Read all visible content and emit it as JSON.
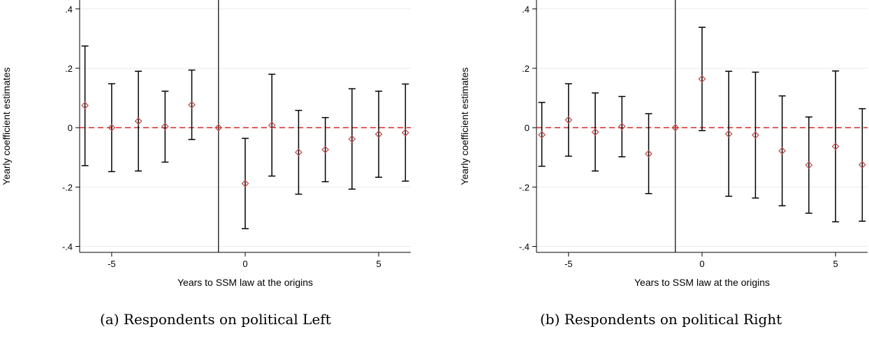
{
  "chart_data": [
    {
      "type": "scatter",
      "panel": "a",
      "caption": "(a) Respondents on political Left",
      "xlabel": "Years to SSM law at the origins",
      "ylabel": "Yearly coefficient estimates",
      "x_ticks": [
        -5,
        0,
        5
      ],
      "y_ticks": [
        ".4",
        ".2",
        "0",
        "-.2",
        "-.4"
      ],
      "y_tick_values": [
        0.4,
        0.2,
        0,
        -0.2,
        -0.4
      ],
      "xlim": [
        -6.2,
        6.2
      ],
      "ylim": [
        -0.42,
        0.43
      ],
      "reference_vertical_x": -1,
      "reference_horizontal_y": 0,
      "points": [
        {
          "x": -6,
          "y": 0.075,
          "lo": -0.128,
          "hi": 0.275
        },
        {
          "x": -5,
          "y": 0.0,
          "lo": -0.148,
          "hi": 0.148
        },
        {
          "x": -4,
          "y": 0.022,
          "lo": -0.146,
          "hi": 0.19
        },
        {
          "x": -3,
          "y": 0.004,
          "lo": -0.116,
          "hi": 0.123
        },
        {
          "x": -2,
          "y": 0.077,
          "lo": -0.04,
          "hi": 0.194
        },
        {
          "x": -1,
          "y": 0.0,
          "lo": 0.0,
          "hi": 0.0
        },
        {
          "x": 0,
          "y": -0.188,
          "lo": -0.34,
          "hi": -0.036
        },
        {
          "x": 1,
          "y": 0.008,
          "lo": -0.163,
          "hi": 0.18
        },
        {
          "x": 2,
          "y": -0.083,
          "lo": -0.224,
          "hi": 0.058
        },
        {
          "x": 3,
          "y": -0.074,
          "lo": -0.182,
          "hi": 0.034
        },
        {
          "x": 4,
          "y": -0.038,
          "lo": -0.207,
          "hi": 0.131
        },
        {
          "x": 5,
          "y": -0.022,
          "lo": -0.167,
          "hi": 0.123
        },
        {
          "x": 6,
          "y": -0.017,
          "lo": -0.18,
          "hi": 0.147
        }
      ]
    },
    {
      "type": "scatter",
      "panel": "b",
      "caption": "(b) Respondents on political Right",
      "xlabel": "Years to SSM law at the origins",
      "ylabel": "Yearly coefficient estimates",
      "x_ticks": [
        -5,
        0,
        5
      ],
      "y_ticks": [
        ".4",
        ".2",
        "0",
        "-.2",
        "-.4"
      ],
      "y_tick_values": [
        0.4,
        0.2,
        0,
        -0.2,
        -0.4
      ],
      "xlim": [
        -6.2,
        6.2
      ],
      "ylim": [
        -0.42,
        0.43
      ],
      "reference_vertical_x": -1,
      "reference_horizontal_y": 0,
      "points": [
        {
          "x": -6,
          "y": -0.024,
          "lo": -0.13,
          "hi": 0.085
        },
        {
          "x": -5,
          "y": 0.026,
          "lo": -0.096,
          "hi": 0.148
        },
        {
          "x": -4,
          "y": -0.015,
          "lo": -0.146,
          "hi": 0.117
        },
        {
          "x": -3,
          "y": 0.004,
          "lo": -0.098,
          "hi": 0.105
        },
        {
          "x": -2,
          "y": -0.088,
          "lo": -0.222,
          "hi": 0.047
        },
        {
          "x": -1,
          "y": 0.0,
          "lo": 0.0,
          "hi": 0.0
        },
        {
          "x": 0,
          "y": 0.164,
          "lo": -0.01,
          "hi": 0.338
        },
        {
          "x": 1,
          "y": -0.021,
          "lo": -0.231,
          "hi": 0.19
        },
        {
          "x": 2,
          "y": -0.025,
          "lo": -0.237,
          "hi": 0.187
        },
        {
          "x": 3,
          "y": -0.078,
          "lo": -0.263,
          "hi": 0.107
        },
        {
          "x": 4,
          "y": -0.126,
          "lo": -0.288,
          "hi": 0.036
        },
        {
          "x": 5,
          "y": -0.063,
          "lo": -0.317,
          "hi": 0.191
        },
        {
          "x": 6,
          "y": -0.125,
          "lo": -0.315,
          "hi": 0.064
        }
      ]
    }
  ],
  "colors": {
    "marker": "#c0504d",
    "reference_line": "#d62728",
    "error_bar": "#000000",
    "grid": "#eaeaea",
    "axis": "#000000"
  }
}
